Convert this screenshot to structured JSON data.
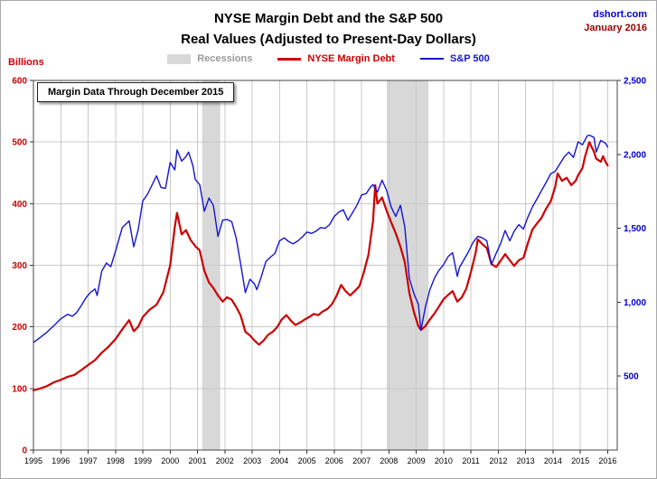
{
  "header": {
    "title": "NYSE Margin Debt and the S&P 500",
    "subtitle": "Real Values (Adjusted to Present-Day Dollars)",
    "source": "dshort.com",
    "date": "January 2016"
  },
  "legend": {
    "recessions": "Recessions",
    "margin_debt": "NYSE Margin Debt",
    "sp500": "S&P 500"
  },
  "annotation": "Margin Data Through December 2015",
  "left_axis_title": "Billions",
  "colors": {
    "red": "#cc0000",
    "blue": "#1414d2",
    "recession": "#d8d8d8",
    "grid": "#c9c9c9",
    "border": "#444444",
    "tick": "#333333",
    "x_label": "#000000"
  },
  "chart_data": {
    "type": "line",
    "title": "NYSE Margin Debt and the S&P 500",
    "subtitle": "Real Values (Adjusted to Present-Day Dollars)",
    "x_min": 1995,
    "x_max": 2016.35,
    "x_ticks": [
      1995,
      1996,
      1997,
      1998,
      1999,
      2000,
      2001,
      2002,
      2003,
      2004,
      2005,
      2006,
      2007,
      2008,
      2009,
      2010,
      2011,
      2012,
      2013,
      2014,
      2015,
      2016
    ],
    "left_axis": {
      "label": "Billions",
      "min": 0,
      "max": 600,
      "ticks": [
        0,
        100,
        200,
        300,
        400,
        500,
        600
      ],
      "color": "#cc0000"
    },
    "right_axis": {
      "label": "S&P 500",
      "min": 0,
      "max": 2500,
      "ticks": [
        500,
        1000,
        1500,
        2000,
        2500
      ],
      "tick_labels": [
        "500",
        "1,000",
        "1,500",
        "2,000",
        "2,500"
      ],
      "color": "#0000cc"
    },
    "grid": true,
    "legend_position": "top",
    "recessions": [
      [
        2001.17,
        2001.83
      ],
      [
        2007.92,
        2009.45
      ]
    ],
    "series": [
      {
        "name": "NYSE Margin Debt",
        "axis": "left",
        "color": "#cc0000",
        "width": 2.2,
        "points": [
          [
            1995.0,
            97
          ],
          [
            1995.25,
            100
          ],
          [
            1995.5,
            104
          ],
          [
            1995.75,
            110
          ],
          [
            1996.0,
            114
          ],
          [
            1996.25,
            119
          ],
          [
            1996.5,
            122
          ],
          [
            1996.75,
            130
          ],
          [
            1997.0,
            138
          ],
          [
            1997.25,
            146
          ],
          [
            1997.5,
            158
          ],
          [
            1997.75,
            168
          ],
          [
            1998.0,
            180
          ],
          [
            1998.25,
            196
          ],
          [
            1998.5,
            211
          ],
          [
            1998.67,
            193
          ],
          [
            1998.83,
            200
          ],
          [
            1999.0,
            216
          ],
          [
            1999.25,
            228
          ],
          [
            1999.5,
            236
          ],
          [
            1999.75,
            256
          ],
          [
            2000.0,
            300
          ],
          [
            2000.17,
            362
          ],
          [
            2000.25,
            385
          ],
          [
            2000.42,
            350
          ],
          [
            2000.58,
            357
          ],
          [
            2000.75,
            341
          ],
          [
            2000.92,
            331
          ],
          [
            2001.08,
            324
          ],
          [
            2001.25,
            291
          ],
          [
            2001.42,
            272
          ],
          [
            2001.58,
            263
          ],
          [
            2001.75,
            251
          ],
          [
            2001.92,
            241
          ],
          [
            2002.08,
            248
          ],
          [
            2002.25,
            244
          ],
          [
            2002.42,
            232
          ],
          [
            2002.58,
            218
          ],
          [
            2002.75,
            192
          ],
          [
            2002.92,
            186
          ],
          [
            2003.08,
            178
          ],
          [
            2003.25,
            171
          ],
          [
            2003.42,
            178
          ],
          [
            2003.58,
            187
          ],
          [
            2003.75,
            192
          ],
          [
            2003.92,
            200
          ],
          [
            2004.08,
            212
          ],
          [
            2004.25,
            219
          ],
          [
            2004.42,
            210
          ],
          [
            2004.58,
            203
          ],
          [
            2004.75,
            207
          ],
          [
            2004.92,
            212
          ],
          [
            2005.08,
            216
          ],
          [
            2005.25,
            221
          ],
          [
            2005.42,
            219
          ],
          [
            2005.58,
            225
          ],
          [
            2005.75,
            229
          ],
          [
            2005.92,
            237
          ],
          [
            2006.08,
            250
          ],
          [
            2006.25,
            268
          ],
          [
            2006.42,
            258
          ],
          [
            2006.58,
            251
          ],
          [
            2006.75,
            258
          ],
          [
            2006.92,
            266
          ],
          [
            2007.08,
            288
          ],
          [
            2007.25,
            317
          ],
          [
            2007.42,
            372
          ],
          [
            2007.5,
            430
          ],
          [
            2007.58,
            400
          ],
          [
            2007.75,
            410
          ],
          [
            2007.92,
            388
          ],
          [
            2008.08,
            370
          ],
          [
            2008.25,
            352
          ],
          [
            2008.42,
            330
          ],
          [
            2008.58,
            305
          ],
          [
            2008.75,
            255
          ],
          [
            2008.92,
            223
          ],
          [
            2009.08,
            201
          ],
          [
            2009.17,
            195
          ],
          [
            2009.33,
            201
          ],
          [
            2009.5,
            212
          ],
          [
            2009.67,
            222
          ],
          [
            2009.83,
            233
          ],
          [
            2010.0,
            245
          ],
          [
            2010.17,
            252
          ],
          [
            2010.33,
            258
          ],
          [
            2010.5,
            241
          ],
          [
            2010.67,
            248
          ],
          [
            2010.83,
            262
          ],
          [
            2011.0,
            289
          ],
          [
            2011.17,
            320
          ],
          [
            2011.25,
            342
          ],
          [
            2011.42,
            334
          ],
          [
            2011.58,
            328
          ],
          [
            2011.75,
            302
          ],
          [
            2011.92,
            297
          ],
          [
            2012.08,
            307
          ],
          [
            2012.25,
            318
          ],
          [
            2012.42,
            308
          ],
          [
            2012.58,
            299
          ],
          [
            2012.75,
            308
          ],
          [
            2012.92,
            312
          ],
          [
            2013.08,
            336
          ],
          [
            2013.25,
            358
          ],
          [
            2013.42,
            368
          ],
          [
            2013.58,
            377
          ],
          [
            2013.75,
            392
          ],
          [
            2013.92,
            404
          ],
          [
            2014.08,
            427
          ],
          [
            2014.17,
            449
          ],
          [
            2014.33,
            437
          ],
          [
            2014.5,
            442
          ],
          [
            2014.67,
            430
          ],
          [
            2014.83,
            437
          ],
          [
            2014.92,
            446
          ],
          [
            2015.08,
            458
          ],
          [
            2015.17,
            476
          ],
          [
            2015.33,
            500
          ],
          [
            2015.5,
            484
          ],
          [
            2015.58,
            473
          ],
          [
            2015.75,
            468
          ],
          [
            2015.83,
            477
          ],
          [
            2015.92,
            468
          ],
          [
            2016.0,
            462
          ]
        ]
      },
      {
        "name": "S&P 500",
        "axis": "right",
        "color": "#1414d2",
        "width": 1.4,
        "points": [
          [
            1995.0,
            728
          ],
          [
            1995.25,
            762
          ],
          [
            1995.5,
            798
          ],
          [
            1995.75,
            842
          ],
          [
            1996.0,
            888
          ],
          [
            1996.25,
            918
          ],
          [
            1996.42,
            905
          ],
          [
            1996.58,
            930
          ],
          [
            1996.75,
            978
          ],
          [
            1996.92,
            1030
          ],
          [
            1997.08,
            1065
          ],
          [
            1997.25,
            1090
          ],
          [
            1997.33,
            1045
          ],
          [
            1997.5,
            1210
          ],
          [
            1997.67,
            1265
          ],
          [
            1997.83,
            1240
          ],
          [
            1998.0,
            1345
          ],
          [
            1998.25,
            1505
          ],
          [
            1998.5,
            1550
          ],
          [
            1998.67,
            1375
          ],
          [
            1998.83,
            1490
          ],
          [
            1999.0,
            1685
          ],
          [
            1999.17,
            1730
          ],
          [
            1999.33,
            1790
          ],
          [
            1999.5,
            1855
          ],
          [
            1999.67,
            1775
          ],
          [
            1999.83,
            1770
          ],
          [
            2000.0,
            1945
          ],
          [
            2000.17,
            1895
          ],
          [
            2000.25,
            2030
          ],
          [
            2000.42,
            1955
          ],
          [
            2000.58,
            1985
          ],
          [
            2000.67,
            2015
          ],
          [
            2000.83,
            1925
          ],
          [
            2000.92,
            1830
          ],
          [
            2001.08,
            1795
          ],
          [
            2001.25,
            1615
          ],
          [
            2001.42,
            1705
          ],
          [
            2001.58,
            1655
          ],
          [
            2001.75,
            1445
          ],
          [
            2001.92,
            1555
          ],
          [
            2002.08,
            1560
          ],
          [
            2002.25,
            1545
          ],
          [
            2002.42,
            1430
          ],
          [
            2002.58,
            1255
          ],
          [
            2002.75,
            1065
          ],
          [
            2002.92,
            1155
          ],
          [
            2003.08,
            1125
          ],
          [
            2003.17,
            1085
          ],
          [
            2003.33,
            1170
          ],
          [
            2003.5,
            1275
          ],
          [
            2003.67,
            1305
          ],
          [
            2003.83,
            1330
          ],
          [
            2004.0,
            1415
          ],
          [
            2004.17,
            1435
          ],
          [
            2004.33,
            1410
          ],
          [
            2004.5,
            1395
          ],
          [
            2004.67,
            1415
          ],
          [
            2004.83,
            1440
          ],
          [
            2005.0,
            1475
          ],
          [
            2005.17,
            1465
          ],
          [
            2005.33,
            1480
          ],
          [
            2005.5,
            1505
          ],
          [
            2005.67,
            1500
          ],
          [
            2005.83,
            1525
          ],
          [
            2006.0,
            1580
          ],
          [
            2006.17,
            1610
          ],
          [
            2006.33,
            1625
          ],
          [
            2006.5,
            1555
          ],
          [
            2006.67,
            1605
          ],
          [
            2006.83,
            1655
          ],
          [
            2007.0,
            1725
          ],
          [
            2007.17,
            1735
          ],
          [
            2007.33,
            1780
          ],
          [
            2007.42,
            1795
          ],
          [
            2007.58,
            1745
          ],
          [
            2007.75,
            1825
          ],
          [
            2007.92,
            1755
          ],
          [
            2008.08,
            1645
          ],
          [
            2008.25,
            1580
          ],
          [
            2008.42,
            1655
          ],
          [
            2008.58,
            1510
          ],
          [
            2008.75,
            1160
          ],
          [
            2008.92,
            1055
          ],
          [
            2009.08,
            985
          ],
          [
            2009.17,
            812
          ],
          [
            2009.33,
            965
          ],
          [
            2009.5,
            1085
          ],
          [
            2009.67,
            1165
          ],
          [
            2009.83,
            1215
          ],
          [
            2010.0,
            1255
          ],
          [
            2010.17,
            1310
          ],
          [
            2010.33,
            1335
          ],
          [
            2010.5,
            1175
          ],
          [
            2010.58,
            1235
          ],
          [
            2010.75,
            1290
          ],
          [
            2010.92,
            1345
          ],
          [
            2011.08,
            1405
          ],
          [
            2011.25,
            1445
          ],
          [
            2011.42,
            1435
          ],
          [
            2011.58,
            1415
          ],
          [
            2011.75,
            1255
          ],
          [
            2011.92,
            1330
          ],
          [
            2012.08,
            1395
          ],
          [
            2012.25,
            1485
          ],
          [
            2012.42,
            1415
          ],
          [
            2012.58,
            1480
          ],
          [
            2012.75,
            1525
          ],
          [
            2012.92,
            1495
          ],
          [
            2013.08,
            1575
          ],
          [
            2013.25,
            1645
          ],
          [
            2013.42,
            1700
          ],
          [
            2013.58,
            1755
          ],
          [
            2013.75,
            1810
          ],
          [
            2013.92,
            1870
          ],
          [
            2014.08,
            1885
          ],
          [
            2014.25,
            1935
          ],
          [
            2014.42,
            1985
          ],
          [
            2014.58,
            2015
          ],
          [
            2014.75,
            1980
          ],
          [
            2014.92,
            2085
          ],
          [
            2015.08,
            2065
          ],
          [
            2015.25,
            2125
          ],
          [
            2015.33,
            2130
          ],
          [
            2015.5,
            2115
          ],
          [
            2015.58,
            2015
          ],
          [
            2015.75,
            2095
          ],
          [
            2015.92,
            2075
          ],
          [
            2016.0,
            2050
          ]
        ]
      }
    ]
  }
}
